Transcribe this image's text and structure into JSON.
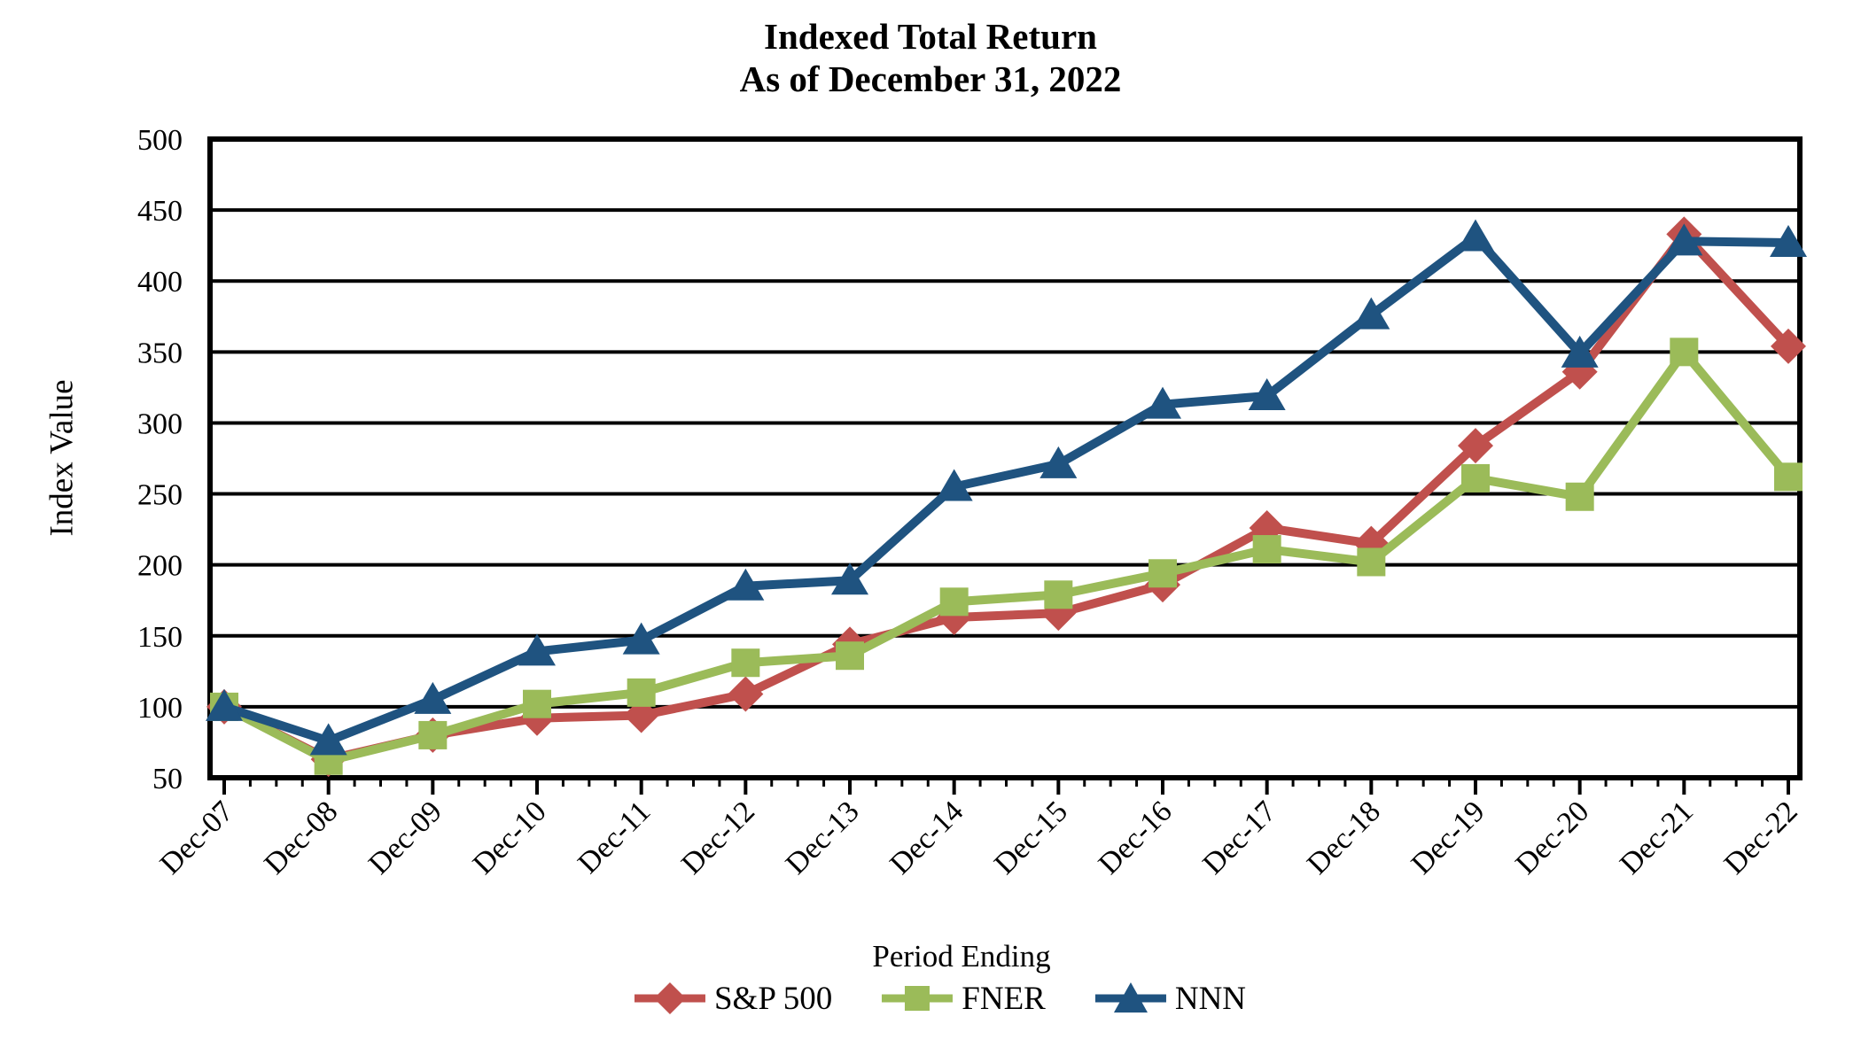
{
  "chart_data": {
    "type": "line",
    "title": "Indexed Total Return",
    "subtitle": "As of December 31, 2022",
    "xlabel": "Period Ending",
    "ylabel": "Index Value",
    "ylim": [
      50,
      500
    ],
    "yticks": [
      50,
      100,
      150,
      200,
      250,
      300,
      350,
      400,
      450,
      500
    ],
    "grid": "horizontal-black-lines",
    "legend_position": "bottom",
    "background_color": "#ffffff",
    "axis_color": "#000000",
    "minor_ticks_per_interval": 3,
    "categories": [
      "Dec-07",
      "Dec-08",
      "Dec-09",
      "Dec-10",
      "Dec-11",
      "Dec-12",
      "Dec-13",
      "Dec-14",
      "Dec-15",
      "Dec-16",
      "Dec-17",
      "Dec-18",
      "Dec-19",
      "Dec-20",
      "Dec-21",
      "Dec-22"
    ],
    "series": [
      {
        "name": "S&P 500",
        "marker": "diamond",
        "color": "#C0504D",
        "values": [
          100,
          63,
          80,
          92,
          94,
          109,
          144,
          163,
          166,
          186,
          226,
          215,
          284,
          336,
          433,
          354
        ]
      },
      {
        "name": "FNER",
        "marker": "square",
        "color": "#9BBB59",
        "values": [
          100,
          62,
          80,
          102,
          110,
          131,
          136,
          174,
          179,
          194,
          211,
          202,
          261,
          248,
          350,
          262
        ]
      },
      {
        "name": "NNN",
        "marker": "triangle",
        "color": "#1F5380",
        "values": [
          100,
          76,
          105,
          139,
          147,
          185,
          189,
          255,
          271,
          313,
          319,
          376,
          431,
          349,
          428,
          427
        ]
      }
    ]
  }
}
